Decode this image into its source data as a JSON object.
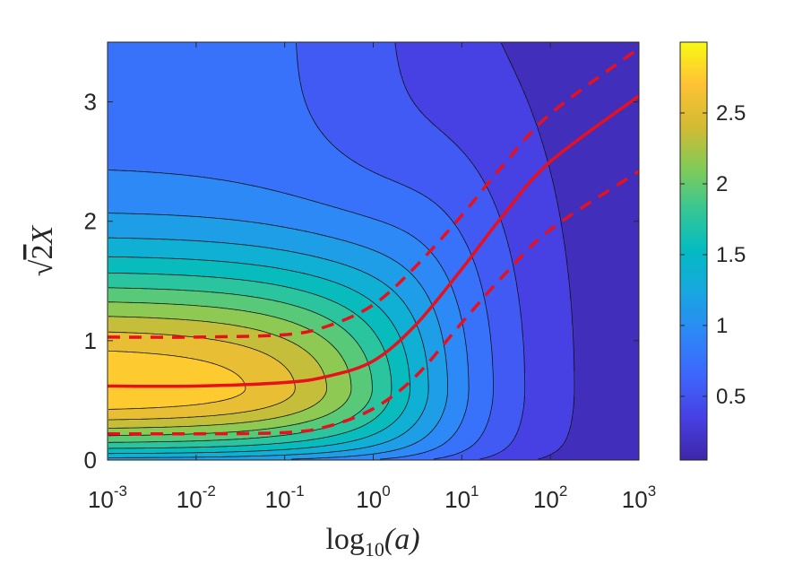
{
  "chart_data": {
    "type": "heatmap",
    "subtype": "filled-contour",
    "title": "",
    "xlabel": "log",
    "xlabel_sub": "10",
    "xlabel_arg": "(a)",
    "ylabel_radical": "√",
    "ylabel_num": "2",
    "ylabel_var": "X",
    "x_scale": "log",
    "x_range": [
      0.001,
      1000
    ],
    "y_range": [
      0,
      3.5
    ],
    "x_ticks": [
      {
        "base": "10",
        "exp": "-3",
        "value": 0.001
      },
      {
        "base": "10",
        "exp": "-2",
        "value": 0.01
      },
      {
        "base": "10",
        "exp": "-1",
        "value": 0.1
      },
      {
        "base": "10",
        "exp": "0",
        "value": 1
      },
      {
        "base": "10",
        "exp": "1",
        "value": 10
      },
      {
        "base": "10",
        "exp": "2",
        "value": 100
      },
      {
        "base": "10",
        "exp": "3",
        "value": 1000
      }
    ],
    "y_ticks": [
      {
        "label": "0",
        "value": 0
      },
      {
        "label": "1",
        "value": 1
      },
      {
        "label": "2",
        "value": 2
      },
      {
        "label": "3",
        "value": 3
      }
    ],
    "colorbar": {
      "colormap": "parula",
      "range": [
        0.05,
        3.0
      ],
      "ticks": [
        {
          "label": "0.5",
          "value": 0.5
        },
        {
          "label": "1",
          "value": 1
        },
        {
          "label": "1.5",
          "value": 1.5
        },
        {
          "label": "2",
          "value": 2
        },
        {
          "label": "2.5",
          "value": 2.5
        }
      ]
    },
    "contour_levels": [
      0.05,
      0.25,
      0.45,
      0.65,
      0.85,
      1.05,
      1.25,
      1.45,
      1.65,
      1.85,
      2.05,
      2.25,
      2.45,
      2.65,
      2.85
    ],
    "series": [
      {
        "name": "solid-red",
        "style": "solid",
        "color": "#e8101c",
        "points": [
          [
            0.001,
            0.62
          ],
          [
            0.01,
            0.62
          ],
          [
            0.1,
            0.65
          ],
          [
            0.3,
            0.7
          ],
          [
            1,
            0.83
          ],
          [
            3,
            1.13
          ],
          [
            10,
            1.6
          ],
          [
            30,
            2.06
          ],
          [
            100,
            2.5
          ],
          [
            1000,
            3.05
          ]
        ]
      },
      {
        "name": "dashed-red-upper",
        "style": "dashed",
        "color": "#e8101c",
        "points": [
          [
            0.001,
            1.03
          ],
          [
            0.01,
            1.03
          ],
          [
            0.1,
            1.05
          ],
          [
            0.3,
            1.12
          ],
          [
            1,
            1.3
          ],
          [
            3,
            1.62
          ],
          [
            10,
            2.05
          ],
          [
            30,
            2.48
          ],
          [
            100,
            2.9
          ],
          [
            1000,
            3.45
          ]
        ]
      },
      {
        "name": "dashed-red-lower",
        "style": "dashed",
        "color": "#e8101c",
        "points": [
          [
            0.001,
            0.22
          ],
          [
            0.01,
            0.22
          ],
          [
            0.1,
            0.23
          ],
          [
            0.3,
            0.28
          ],
          [
            1,
            0.43
          ],
          [
            3,
            0.7
          ],
          [
            10,
            1.15
          ],
          [
            30,
            1.55
          ],
          [
            100,
            1.93
          ],
          [
            1000,
            2.42
          ]
        ]
      }
    ]
  }
}
